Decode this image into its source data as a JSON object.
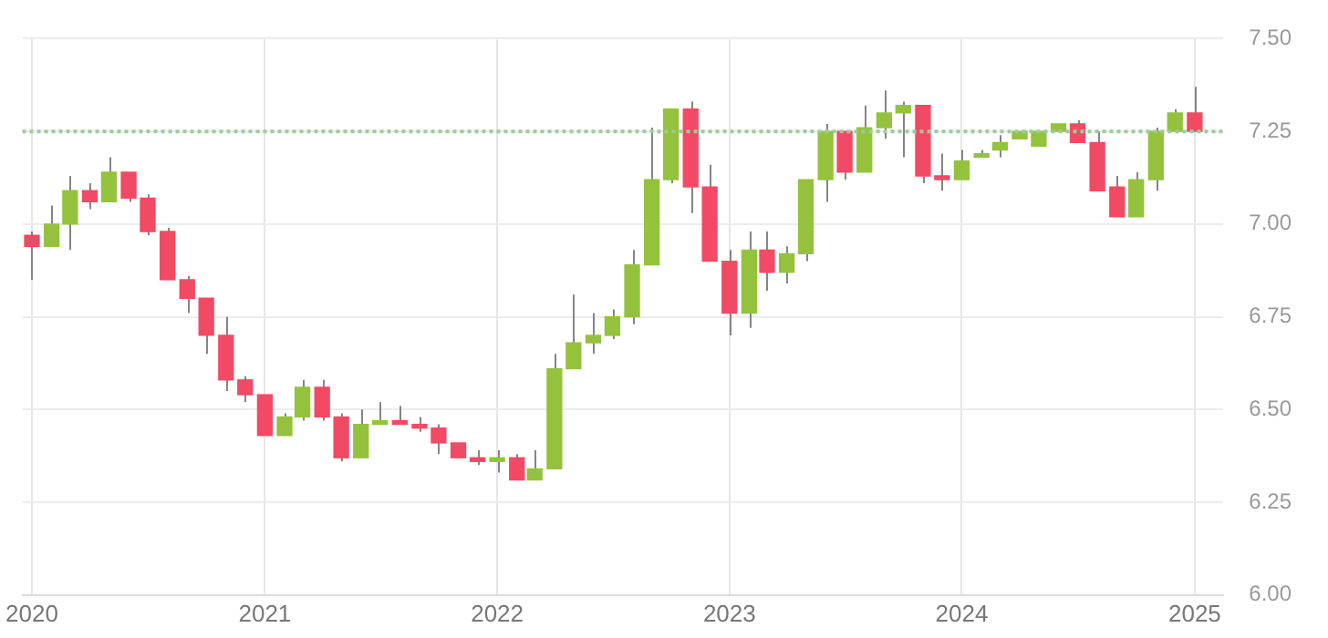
{
  "chart_data": {
    "type": "candlestick",
    "x": [
      "2020-01",
      "2020-02",
      "2020-03",
      "2020-04",
      "2020-05",
      "2020-06",
      "2020-07",
      "2020-08",
      "2020-09",
      "2020-10",
      "2020-11",
      "2020-12",
      "2021-01",
      "2021-02",
      "2021-03",
      "2021-04",
      "2021-05",
      "2021-06",
      "2021-07",
      "2021-08",
      "2021-09",
      "2021-10",
      "2021-11",
      "2021-12",
      "2022-01",
      "2022-02",
      "2022-03",
      "2022-04",
      "2022-05",
      "2022-06",
      "2022-07",
      "2022-08",
      "2022-09",
      "2022-10",
      "2022-11",
      "2022-12",
      "2023-01",
      "2023-02",
      "2023-03",
      "2023-04",
      "2023-05",
      "2023-06",
      "2023-07",
      "2023-08",
      "2023-09",
      "2023-10",
      "2023-11",
      "2023-12",
      "2024-01",
      "2024-02",
      "2024-03",
      "2024-04",
      "2024-05",
      "2024-06",
      "2024-07",
      "2024-08",
      "2024-09",
      "2024-10",
      "2024-11",
      "2024-12",
      "2025-01"
    ],
    "ohlc": [
      [
        6.97,
        6.98,
        6.85,
        6.94
      ],
      [
        6.94,
        7.05,
        6.94,
        7.0
      ],
      [
        7.0,
        7.13,
        6.93,
        7.09
      ],
      [
        7.09,
        7.11,
        7.04,
        7.06
      ],
      [
        7.06,
        7.18,
        7.06,
        7.14
      ],
      [
        7.14,
        7.14,
        7.06,
        7.07
      ],
      [
        7.07,
        7.08,
        6.97,
        6.98
      ],
      [
        6.98,
        6.99,
        6.85,
        6.85
      ],
      [
        6.85,
        6.86,
        6.76,
        6.8
      ],
      [
        6.8,
        6.8,
        6.65,
        6.7
      ],
      [
        6.7,
        6.75,
        6.55,
        6.58
      ],
      [
        6.58,
        6.59,
        6.52,
        6.54
      ],
      [
        6.54,
        6.54,
        6.43,
        6.43
      ],
      [
        6.43,
        6.49,
        6.43,
        6.48
      ],
      [
        6.48,
        6.58,
        6.47,
        6.56
      ],
      [
        6.56,
        6.58,
        6.47,
        6.48
      ],
      [
        6.48,
        6.49,
        6.36,
        6.37
      ],
      [
        6.37,
        6.5,
        6.37,
        6.46
      ],
      [
        6.46,
        6.52,
        6.46,
        6.47
      ],
      [
        6.47,
        6.51,
        6.46,
        6.46
      ],
      [
        6.46,
        6.48,
        6.44,
        6.45
      ],
      [
        6.45,
        6.46,
        6.38,
        6.41
      ],
      [
        6.41,
        6.41,
        6.37,
        6.37
      ],
      [
        6.37,
        6.39,
        6.35,
        6.36
      ],
      [
        6.36,
        6.39,
        6.33,
        6.37
      ],
      [
        6.37,
        6.38,
        6.31,
        6.31
      ],
      [
        6.31,
        6.39,
        6.31,
        6.34
      ],
      [
        6.34,
        6.65,
        6.34,
        6.61
      ],
      [
        6.61,
        6.81,
        6.61,
        6.68
      ],
      [
        6.68,
        6.76,
        6.65,
        6.7
      ],
      [
        6.7,
        6.77,
        6.69,
        6.75
      ],
      [
        6.75,
        6.93,
        6.73,
        6.89
      ],
      [
        6.89,
        7.26,
        6.89,
        7.12
      ],
      [
        7.12,
        7.31,
        7.11,
        7.31
      ],
      [
        7.31,
        7.33,
        7.03,
        7.1
      ],
      [
        7.1,
        7.16,
        6.9,
        6.9
      ],
      [
        6.9,
        6.93,
        6.7,
        6.76
      ],
      [
        6.76,
        6.98,
        6.72,
        6.93
      ],
      [
        6.93,
        6.98,
        6.82,
        6.87
      ],
      [
        6.87,
        6.94,
        6.84,
        6.92
      ],
      [
        6.92,
        7.12,
        6.9,
        7.12
      ],
      [
        7.12,
        7.27,
        7.06,
        7.25
      ],
      [
        7.25,
        7.25,
        7.12,
        7.14
      ],
      [
        7.14,
        7.32,
        7.14,
        7.26
      ],
      [
        7.26,
        7.36,
        7.23,
        7.3
      ],
      [
        7.3,
        7.33,
        7.18,
        7.32
      ],
      [
        7.32,
        7.32,
        7.11,
        7.13
      ],
      [
        7.13,
        7.19,
        7.09,
        7.12
      ],
      [
        7.12,
        7.2,
        7.12,
        7.17
      ],
      [
        7.18,
        7.2,
        7.18,
        7.19
      ],
      [
        7.2,
        7.24,
        7.18,
        7.22
      ],
      [
        7.23,
        7.25,
        7.23,
        7.25
      ],
      [
        7.21,
        7.25,
        7.21,
        7.25
      ],
      [
        7.25,
        7.27,
        7.25,
        7.27
      ],
      [
        7.27,
        7.28,
        7.22,
        7.22
      ],
      [
        7.22,
        7.25,
        7.09,
        7.09
      ],
      [
        7.1,
        7.13,
        7.02,
        7.02
      ],
      [
        7.02,
        7.14,
        7.02,
        7.12
      ],
      [
        7.12,
        7.26,
        7.09,
        7.25
      ],
      [
        7.25,
        7.31,
        7.25,
        7.3
      ],
      [
        7.3,
        7.37,
        7.25,
        7.25
      ]
    ],
    "colors": [
      "#f24a64",
      "#95c23d",
      "#95c23d",
      "#f24a64",
      "#95c23d",
      "#f24a64",
      "#f24a64",
      "#f24a64",
      "#f24a64",
      "#f24a64",
      "#f24a64",
      "#f24a64",
      "#f24a64",
      "#95c23d",
      "#95c23d",
      "#f24a64",
      "#f24a64",
      "#95c23d",
      "#95c23d",
      "#f24a64",
      "#f24a64",
      "#f24a64",
      "#f24a64",
      "#f24a64",
      "#95c23d",
      "#f24a64",
      "#95c23d",
      "#95c23d",
      "#95c23d",
      "#95c23d",
      "#95c23d",
      "#95c23d",
      "#95c23d",
      "#95c23d",
      "#f24a64",
      "#f24a64",
      "#f24a64",
      "#95c23d",
      "#f24a64",
      "#95c23d",
      "#95c23d",
      "#95c23d",
      "#f24a64",
      "#95c23d",
      "#95c23d",
      "#95c23d",
      "#f24a64",
      "#f24a64",
      "#95c23d",
      "#95c23d",
      "#95c23d",
      "#95c23d",
      "#95c23d",
      "#95c23d",
      "#f24a64",
      "#f24a64",
      "#f24a64",
      "#95c23d",
      "#95c23d",
      "#95c23d",
      "#f24a64"
    ],
    "xlim": [
      "2019-12-17",
      "2025-02-15"
    ],
    "xticks": [
      "2020",
      "2021",
      "2022",
      "2023",
      "2024",
      "2025"
    ],
    "ylim": [
      6.0,
      7.5
    ],
    "yticks": [
      {
        "value": 6.0,
        "label": "6.00"
      },
      {
        "value": 6.25,
        "label": "6.25"
      },
      {
        "value": 6.5,
        "label": "6.50"
      },
      {
        "value": 6.75,
        "label": "6.75"
      },
      {
        "value": 7.0,
        "label": "7.00"
      },
      {
        "value": 7.25,
        "label": "7.25"
      },
      {
        "value": 7.5,
        "label": "7.50"
      }
    ],
    "ref_lines": [
      {
        "axis": "y",
        "value": 7.25,
        "color": "#9ccc9c",
        "line_style": "dotted"
      }
    ],
    "grid": true,
    "legend": false
  }
}
